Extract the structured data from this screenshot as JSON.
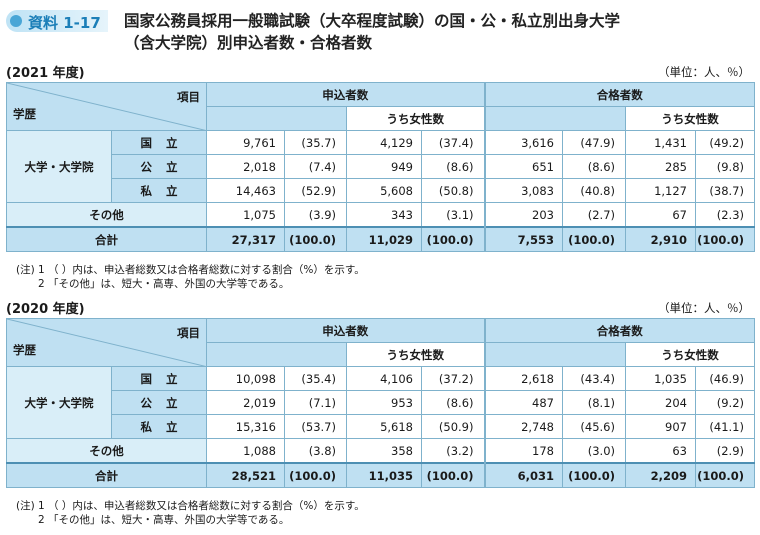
{
  "header": {
    "badge": "資料 1-17",
    "title_line1": "国家公務員採用一般職試験（大卒程度試験）の国・公・私立別出身大学",
    "title_line2": "（含大学院）別申込者数・合格者数"
  },
  "sections": [
    {
      "year": "(2021 年度)",
      "unit": "（単位：人、％）",
      "headers": {
        "item": "項目",
        "gakureki": "学歴",
        "applicants": "申込者数",
        "passers": "合格者数",
        "women": "うち女性数"
      },
      "univ_group": "大学・大学院",
      "rows": [
        {
          "label": "国立",
          "a": "9,761",
          "ap": "(35.7)",
          "aw": "4,129",
          "awp": "(37.4)",
          "p": "3,616",
          "pp": "(47.9)",
          "pw": "1,431",
          "pwp": "(49.2)"
        },
        {
          "label": "公立",
          "a": "2,018",
          "ap": "(7.4)",
          "aw": "949",
          "awp": "(8.6)",
          "p": "651",
          "pp": "(8.6)",
          "pw": "285",
          "pwp": "(9.8)"
        },
        {
          "label": "私立",
          "a": "14,463",
          "ap": "(52.9)",
          "aw": "5,608",
          "awp": "(50.8)",
          "p": "3,083",
          "pp": "(40.8)",
          "pw": "1,127",
          "pwp": "(38.7)"
        },
        {
          "label": "その他",
          "a": "1,075",
          "ap": "(3.9)",
          "aw": "343",
          "awp": "(3.1)",
          "p": "203",
          "pp": "(2.7)",
          "pw": "67",
          "pwp": "(2.3)"
        }
      ],
      "total": {
        "label": "合計",
        "a": "27,317",
        "ap": "(100.0)",
        "aw": "11,029",
        "awp": "(100.0)",
        "p": "7,553",
        "pp": "(100.0)",
        "pw": "2,910",
        "pwp": "(100.0)"
      },
      "notes": [
        "(注) 1 （ ）内は、申込者総数又は合格者総数に対する割合（%）を示す。",
        "2 「その他」は、短大・高専、外国の大学等である。"
      ]
    },
    {
      "year": "(2020 年度)",
      "unit": "（単位：人、％）",
      "headers": {
        "item": "項目",
        "gakureki": "学歴",
        "applicants": "申込者数",
        "passers": "合格者数",
        "women": "うち女性数"
      },
      "univ_group": "大学・大学院",
      "rows": [
        {
          "label": "国立",
          "a": "10,098",
          "ap": "(35.4)",
          "aw": "4,106",
          "awp": "(37.2)",
          "p": "2,618",
          "pp": "(43.4)",
          "pw": "1,035",
          "pwp": "(46.9)"
        },
        {
          "label": "公立",
          "a": "2,019",
          "ap": "(7.1)",
          "aw": "953",
          "awp": "(8.6)",
          "p": "487",
          "pp": "(8.1)",
          "pw": "204",
          "pwp": "(9.2)"
        },
        {
          "label": "私立",
          "a": "15,316",
          "ap": "(53.7)",
          "aw": "5,618",
          "awp": "(50.9)",
          "p": "2,748",
          "pp": "(45.6)",
          "pw": "907",
          "pwp": "(41.1)"
        },
        {
          "label": "その他",
          "a": "1,088",
          "ap": "(3.8)",
          "aw": "358",
          "awp": "(3.2)",
          "p": "178",
          "pp": "(3.0)",
          "pw": "63",
          "pwp": "(2.9)"
        }
      ],
      "total": {
        "label": "合計",
        "a": "28,521",
        "ap": "(100.0)",
        "aw": "11,035",
        "awp": "(100.0)",
        "p": "6,031",
        "pp": "(100.0)",
        "pw": "2,209",
        "pwp": "(100.0)"
      },
      "notes": [
        "(注) 1 （ ）内は、申込者総数又は合格者総数に対する割合（%）を示す。",
        "2 「その他」は、短大・高専、外国の大学等である。"
      ]
    }
  ]
}
